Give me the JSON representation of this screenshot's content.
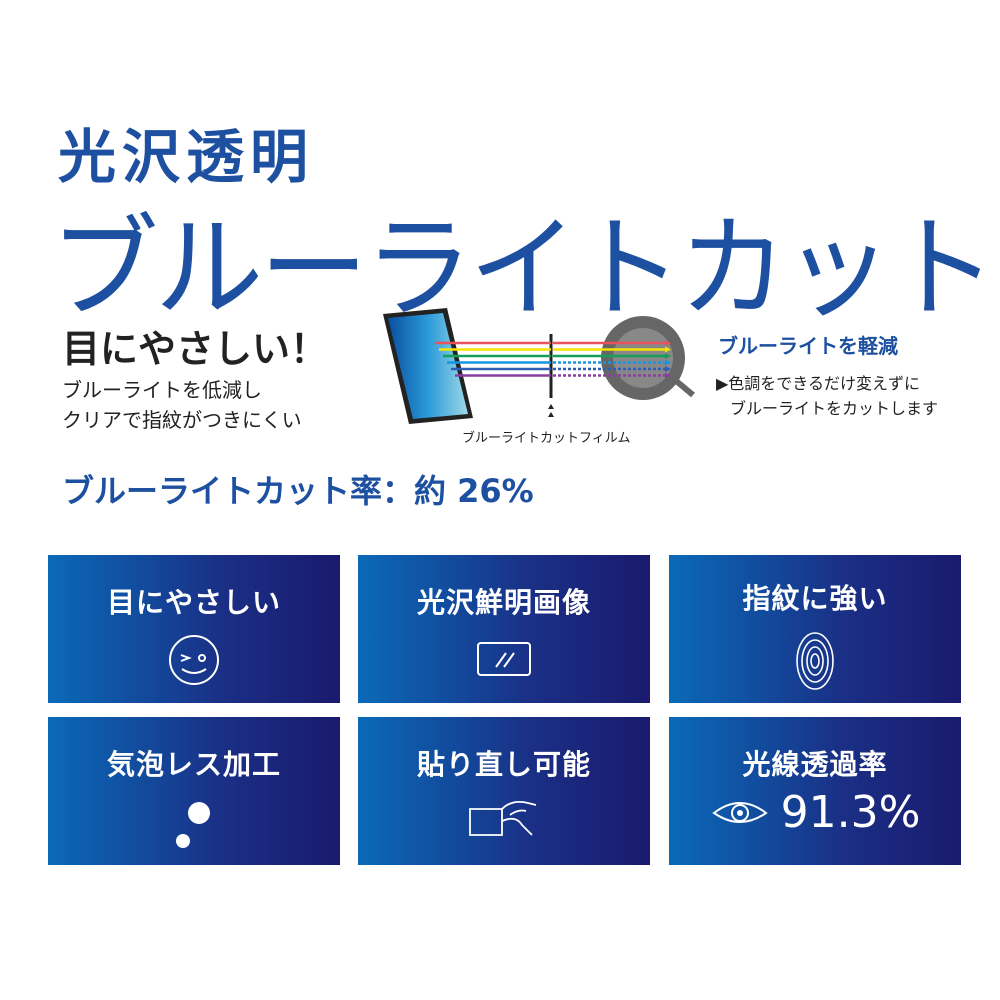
{
  "header": {
    "line1": "光沢透明",
    "line2": "ブルーライトカット"
  },
  "left": {
    "headline": "目にやさしい！",
    "sub1": "ブルーライトを低減し",
    "sub2": "クリアで指紋がつきにくい"
  },
  "diagram": {
    "film_label": "ブルーライトカットフィルム",
    "ray_colors": [
      "#e8525a",
      "#f5e400",
      "#14a05a",
      "#1496e0",
      "#2c5fb5",
      "#8a3fa0"
    ]
  },
  "right": {
    "title": "ブルーライトを軽減",
    "line1": "▶色調をできるだけ変えずに",
    "line2": "ブルーライトをカットします"
  },
  "cut_rate": "ブルーライトカット率：約 26%",
  "features": [
    {
      "label": "目にやさしい",
      "icon": "wink-face-icon"
    },
    {
      "label": "光沢鮮明画像",
      "icon": "screen-glare-icon"
    },
    {
      "label": "指紋に強い",
      "icon": "fingerprint-icon"
    },
    {
      "label": "気泡レス加工",
      "icon": "bubbles-icon"
    },
    {
      "label": "貼り直し可能",
      "icon": "peel-hand-icon"
    },
    {
      "label": "光線透過率",
      "icon": "eye-icon",
      "value": "91.3%"
    }
  ],
  "colors": {
    "brand": "#1d50a0",
    "tile_start": "#0a6ab8",
    "tile_end": "#1a1a6e"
  }
}
